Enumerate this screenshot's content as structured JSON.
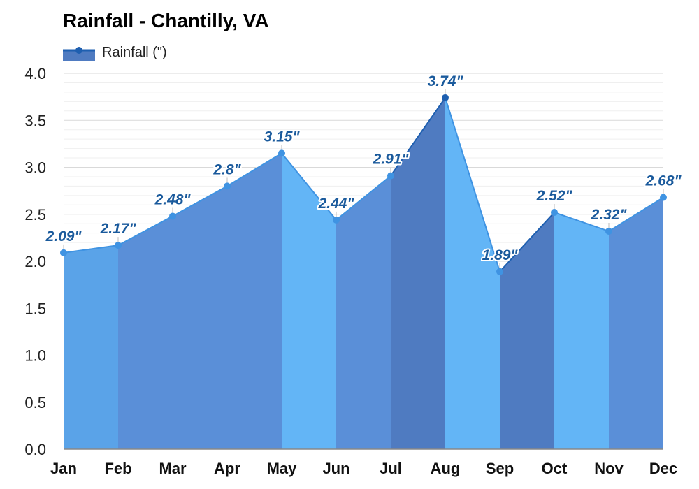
{
  "chart_data": {
    "type": "area",
    "title": "Rainfall - Chantilly, VA",
    "categories": [
      "Jan",
      "Feb",
      "Mar",
      "Apr",
      "May",
      "Jun",
      "Jul",
      "Aug",
      "Sep",
      "Oct",
      "Nov",
      "Dec"
    ],
    "series": [
      {
        "name": "Rainfall (\")",
        "values": [
          2.09,
          2.17,
          2.48,
          2.8,
          3.15,
          2.44,
          2.91,
          3.74,
          1.89,
          2.52,
          2.32,
          2.68
        ]
      }
    ],
    "data_labels": [
      "2.09\"",
      "2.17\"",
      "2.48\"",
      "2.8\"",
      "3.15\"",
      "2.44\"",
      "2.91\"",
      "3.74\"",
      "1.89\"",
      "2.52\"",
      "2.32\"",
      "2.68\""
    ],
    "y_ticks": [
      "0.0",
      "0.5",
      "1.0",
      "1.5",
      "2.0",
      "2.5",
      "3.0",
      "3.5",
      "4.0"
    ],
    "ylim": [
      0,
      4
    ],
    "xlabel": "",
    "ylabel": "",
    "grid": true,
    "legend_position": "top-left",
    "colors": {
      "light": "#63b5f6",
      "mid": "#5aa3e8",
      "dark": "#5a8fd8",
      "darkest": "#4f7bc1",
      "line": "#3f93e2",
      "line_dark": "#1e5fb0",
      "label": "#1a5a9c"
    }
  }
}
